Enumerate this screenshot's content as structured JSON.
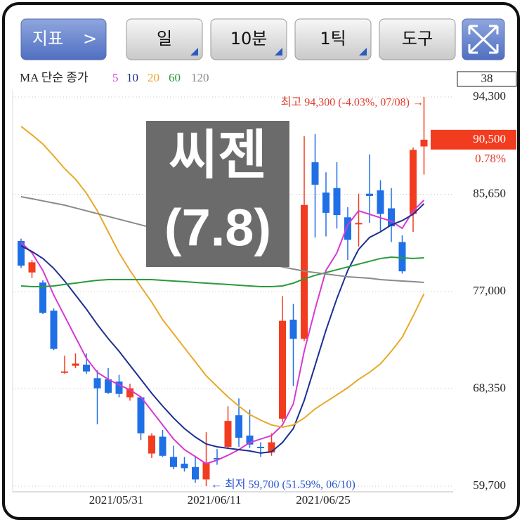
{
  "toolbar": {
    "indicator": "지표",
    "indicator_arrow": ">",
    "period": "일",
    "interval": "10분",
    "tick": "1틱",
    "tools": "도구"
  },
  "chart_data": {
    "type": "candlestick",
    "watermark": [
      "씨젠",
      "(7.8)"
    ],
    "ma_label": "MA 단순 종가",
    "visible_count": 38,
    "up_color": "#f23c1f",
    "down_color": "#1f6fe6",
    "categories": [
      null,
      null,
      null,
      null,
      null,
      null,
      null,
      null,
      null,
      "2021/05/31",
      null,
      null,
      null,
      null,
      null,
      null,
      null,
      null,
      "2021/06/11",
      null,
      null,
      null,
      null,
      null,
      null,
      null,
      null,
      null,
      "2021/06/25",
      null,
      null,
      null,
      null,
      null,
      null,
      null,
      null,
      null
    ],
    "open": [
      81500,
      78700,
      77800,
      75300,
      69800,
      70400,
      70500,
      69300,
      69200,
      69000,
      67600,
      67600,
      62600,
      64100,
      62300,
      61700,
      61400,
      60300,
      62200,
      63200,
      66000,
      64200,
      63200,
      62700,
      65700,
      74500,
      72800,
      88500,
      85800,
      86200,
      83600,
      83000,
      85700,
      86000,
      84400,
      81400,
      83900,
      89900
    ],
    "high": [
      81700,
      79800,
      78000,
      75500,
      71300,
      71500,
      71500,
      70000,
      70200,
      69600,
      68800,
      67700,
      64400,
      64700,
      63300,
      62300,
      62400,
      64500,
      63000,
      66800,
      67500,
      66500,
      63600,
      64400,
      76600,
      75900,
      90800,
      91000,
      87600,
      88500,
      84500,
      85700,
      89200,
      86900,
      86200,
      82000,
      89800,
      94300
    ],
    "low": [
      79100,
      78200,
      75000,
      71800,
      69700,
      70200,
      69700,
      65200,
      67900,
      67600,
      67300,
      63800,
      62200,
      62300,
      61200,
      61000,
      60000,
      59700,
      61600,
      63000,
      63200,
      63100,
      62300,
      62400,
      65400,
      68600,
      72600,
      81800,
      81900,
      82600,
      79800,
      81000,
      83100,
      82400,
      81400,
      78600,
      82300,
      87400
    ],
    "close": [
      79300,
      79600,
      75100,
      71900,
      69900,
      70600,
      69900,
      68400,
      68000,
      67900,
      68400,
      64400,
      64200,
      62400,
      61400,
      61300,
      60300,
      61800,
      62100,
      65500,
      64000,
      63400,
      63100,
      63600,
      74400,
      72800,
      84700,
      86500,
      84000,
      83800,
      81600,
      83100,
      85500,
      83900,
      82800,
      78800,
      89600,
      90500
    ],
    "ma": [
      {
        "name": "5",
        "color": "#d63ad0",
        "values": [
          81370,
          80440,
          78880,
          76690,
          74820,
          72940,
          71070,
          69820,
          69200,
          68700,
          68260,
          67630,
          66390,
          65140,
          63890,
          62950,
          62330,
          61700,
          62010,
          62450,
          62950,
          63580,
          63890,
          64200,
          65140,
          67010,
          71690,
          75440,
          78880,
          80440,
          82930,
          84180,
          83870,
          83560,
          83250,
          82620,
          84180,
          85120
        ]
      },
      {
        "name": "10",
        "color": "#1c2f8f",
        "values": [
          81060,
          80560,
          79940,
          79060,
          77940,
          76690,
          75440,
          74070,
          72820,
          71690,
          70440,
          69200,
          67950,
          66820,
          65760,
          64820,
          64070,
          63450,
          63200,
          63070,
          62950,
          62830,
          62640,
          62760,
          63580,
          64820,
          67320,
          70440,
          73570,
          76380,
          78880,
          80750,
          81810,
          82310,
          82930,
          83310,
          83870,
          84810
        ]
      },
      {
        "name": "20",
        "color": "#e9a92a",
        "values": [
          91680,
          90930,
          90120,
          89050,
          87930,
          86990,
          85740,
          84180,
          82310,
          80440,
          78880,
          77440,
          76060,
          74500,
          73250,
          72000,
          70760,
          69510,
          68570,
          67630,
          66820,
          66070,
          65570,
          65140,
          64950,
          65140,
          65760,
          66570,
          67200,
          67820,
          68450,
          69200,
          69820,
          70570,
          71690,
          72940,
          74820,
          76810
        ]
      },
      {
        "name": "60",
        "color": "#2a9a3a",
        "values": [
          77500,
          77440,
          77440,
          77500,
          77630,
          77750,
          77880,
          78000,
          78060,
          78060,
          78060,
          78060,
          78060,
          78000,
          77940,
          77880,
          77810,
          77750,
          77690,
          77630,
          77560,
          77500,
          77440,
          77440,
          77500,
          77750,
          78130,
          78440,
          78690,
          78940,
          79190,
          79440,
          79690,
          79940,
          80060,
          80000,
          79940,
          80000
        ]
      },
      {
        "name": "120",
        "color": "#8a8a8a",
        "values": [
          85430,
          85250,
          85060,
          84870,
          84680,
          84430,
          84180,
          83930,
          83680,
          83430,
          83180,
          82930,
          82680,
          82430,
          82190,
          81870,
          81560,
          81250,
          80940,
          80620,
          80310,
          80000,
          79690,
          79440,
          79190,
          79000,
          78810,
          78690,
          78560,
          78440,
          78310,
          78250,
          78190,
          78060,
          78000,
          77940,
          77880,
          77810
        ]
      }
    ],
    "ylim": [
      59200,
      94925
    ],
    "yticks": [
      {
        "value": 59700,
        "label": "59,700"
      },
      {
        "value": 68350,
        "label": "68,350"
      },
      {
        "value": 77000,
        "label": "77,000"
      },
      {
        "value": 85650,
        "label": "85,650"
      },
      {
        "value": 94300,
        "label": "94,300"
      }
    ],
    "grid": true,
    "current": {
      "value": 90500,
      "label": "90,500"
    },
    "current_change": {
      "value": 0.78,
      "label": "0.78%"
    },
    "max_annotation": "최고 94,300 (-4.03%, 07/08) →",
    "min_annotation": "← 최저 59,700 (51.59%, 06/10)"
  }
}
